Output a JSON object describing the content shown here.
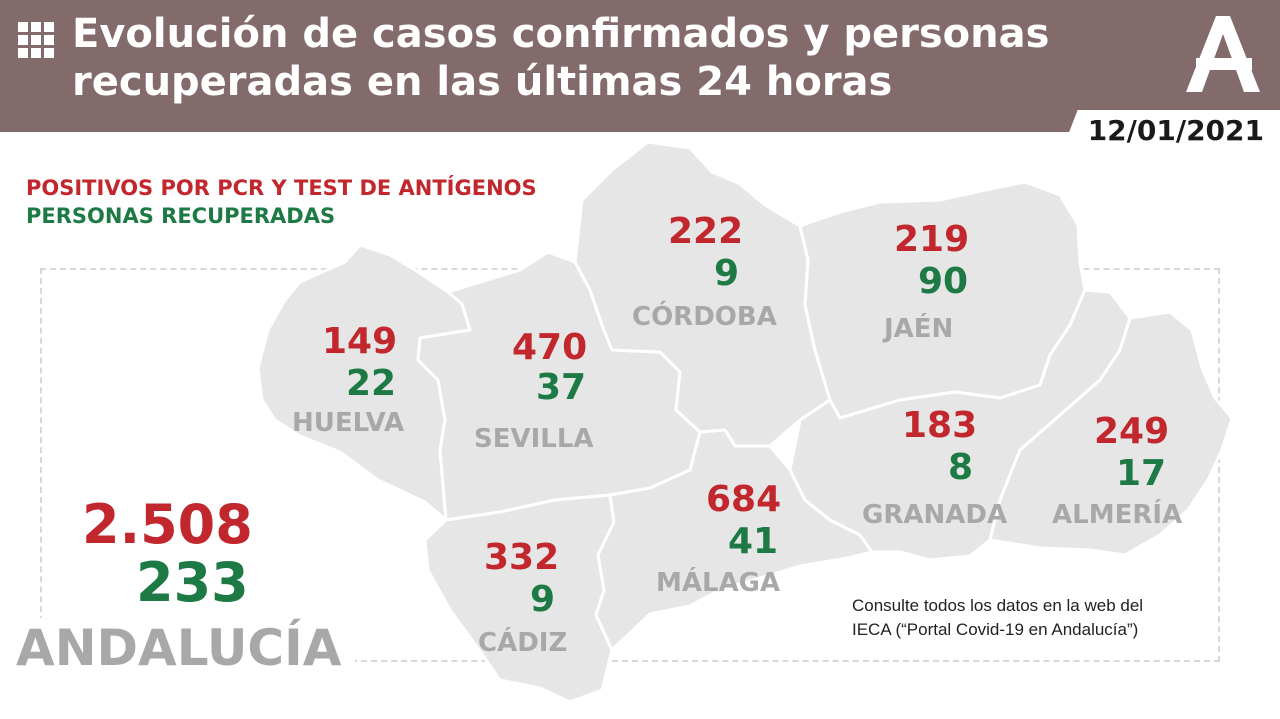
{
  "header": {
    "title_line1": "Evolución de casos confirmados y personas",
    "title_line2": "recuperadas en las últimas 24 horas",
    "grid_icon": "grid-icon",
    "logo": "junta-de-andalucia-logo-icon",
    "background_color": "#836a6b"
  },
  "date": "12/01/2021",
  "legend": {
    "positives": "POSITIVOS POR PCR Y TEST DE ANTÍGENOS",
    "recovered": "PERSONAS RECUPERADAS"
  },
  "colors": {
    "positives": "#c1272d",
    "recovered": "#1d7a44",
    "province_label": "#a8a8a8",
    "map_fill": "#e6e6e6"
  },
  "provinces": [
    {
      "name": "HUELVA",
      "positives": "149",
      "recovered": "22"
    },
    {
      "name": "SEVILLA",
      "positives": "470",
      "recovered": "37"
    },
    {
      "name": "CÓRDOBA",
      "positives": "222",
      "recovered": "9"
    },
    {
      "name": "JAÉN",
      "positives": "219",
      "recovered": "90"
    },
    {
      "name": "CÁDIZ",
      "positives": "332",
      "recovered": "9"
    },
    {
      "name": "MÁLAGA",
      "positives": "684",
      "recovered": "41"
    },
    {
      "name": "GRANADA",
      "positives": "183",
      "recovered": "8"
    },
    {
      "name": "ALMERÍA",
      "positives": "249",
      "recovered": "17"
    }
  ],
  "total": {
    "region": "ANDALUCÍA",
    "positives": "2.508",
    "recovered": "233"
  },
  "note": {
    "line1": "Consulte todos los datos en la web del",
    "line2": "IECA (“Portal Covid-19 en Andalucía”)"
  }
}
